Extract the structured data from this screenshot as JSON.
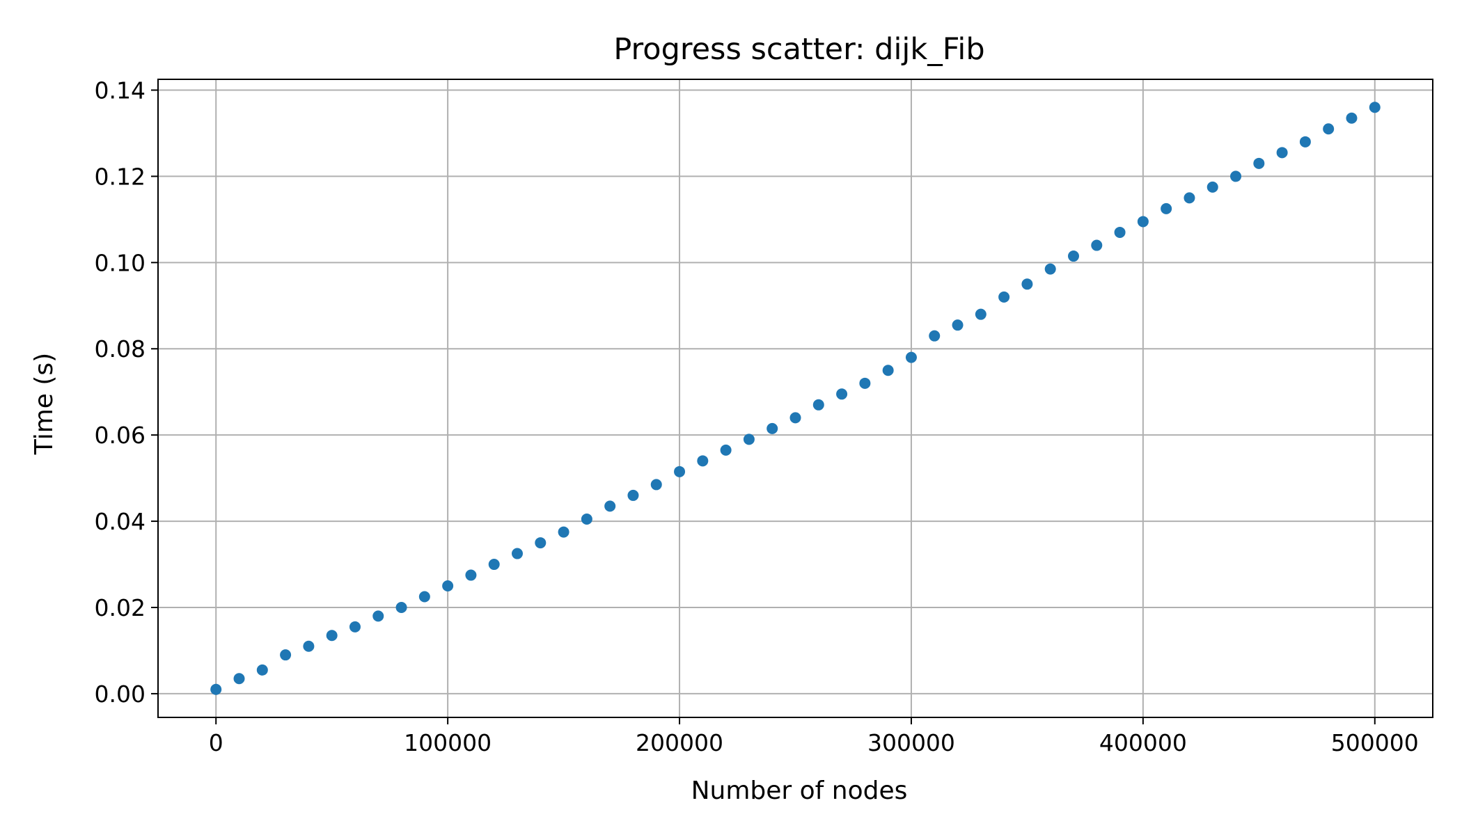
{
  "chart_data": {
    "type": "scatter",
    "title": "Progress scatter: dijk_Fib",
    "xlabel": "Number of nodes",
    "ylabel": "Time (s)",
    "xlim": [
      -25000,
      525000
    ],
    "ylim": [
      -0.0055,
      0.1425
    ],
    "xticks": [
      0,
      100000,
      200000,
      300000,
      400000,
      500000
    ],
    "yticks": [
      0.0,
      0.02,
      0.04,
      0.06,
      0.08,
      0.1,
      0.12,
      0.14
    ],
    "xtick_labels": [
      "0",
      "100000",
      "200000",
      "300000",
      "400000",
      "500000"
    ],
    "ytick_labels": [
      "0.00",
      "0.02",
      "0.04",
      "0.06",
      "0.08",
      "0.10",
      "0.12",
      "0.14"
    ],
    "grid": true,
    "marker_color": "#1f77b4",
    "series": [
      {
        "x": [
          0,
          10000,
          20000,
          30000,
          40000,
          50000,
          60000,
          70000,
          80000,
          90000,
          100000,
          110000,
          120000,
          130000,
          140000,
          150000,
          160000,
          170000,
          180000,
          190000,
          200000,
          210000,
          220000,
          230000,
          240000,
          250000,
          260000,
          270000,
          280000,
          290000,
          300000,
          310000,
          320000,
          330000,
          340000,
          350000,
          360000,
          370000,
          380000,
          390000,
          400000,
          410000,
          420000,
          430000,
          440000,
          450000,
          460000,
          470000,
          480000,
          490000,
          500000
        ],
        "y": [
          0.001,
          0.0035,
          0.0055,
          0.009,
          0.011,
          0.0135,
          0.0155,
          0.018,
          0.02,
          0.0225,
          0.025,
          0.0275,
          0.03,
          0.0325,
          0.035,
          0.0375,
          0.0405,
          0.0435,
          0.046,
          0.0485,
          0.0515,
          0.054,
          0.0565,
          0.059,
          0.0615,
          0.064,
          0.067,
          0.0695,
          0.072,
          0.075,
          0.078,
          0.083,
          0.0855,
          0.088,
          0.092,
          0.095,
          0.0985,
          0.1015,
          0.104,
          0.107,
          0.1095,
          0.1125,
          0.115,
          0.1175,
          0.12,
          0.123,
          0.1255,
          0.128,
          0.131,
          0.1335,
          0.136
        ]
      }
    ]
  }
}
